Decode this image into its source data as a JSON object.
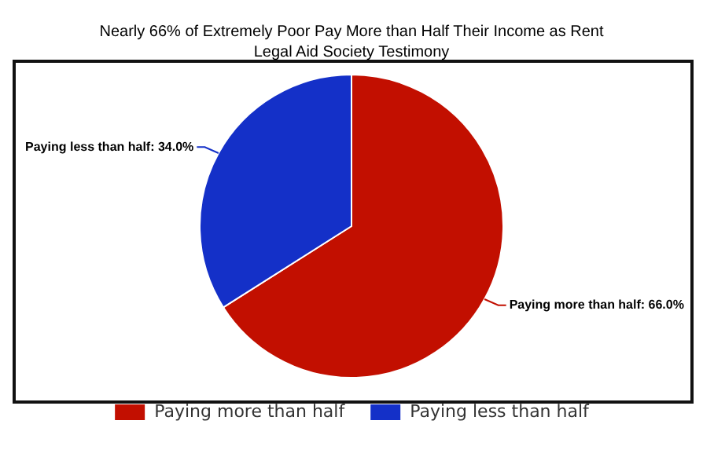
{
  "chart_data": {
    "type": "pie",
    "title": "Nearly 66% of Extremely Poor Pay More than Half Their Income as Rent",
    "subtitle": "Legal Aid Society Testimony",
    "categories": [
      "Paying more than half",
      "Paying less than half"
    ],
    "values": [
      66.0,
      34.0
    ],
    "colors": [
      "#c20f00",
      "#1430c8"
    ],
    "value_labels": [
      "Paying more than half: 66.0%",
      "Paying less than half: 34.0%"
    ],
    "legend": "bottom"
  }
}
